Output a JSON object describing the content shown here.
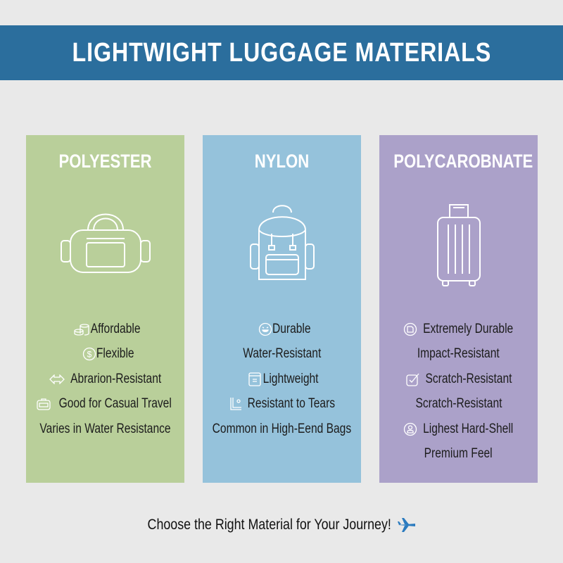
{
  "title": "LIGHTWIGHT LUGGAGE MATERIALS",
  "colors": {
    "header": "#2b6e9d",
    "background": "#e9e9e9",
    "polyester": "#b9cf9a",
    "nylon": "#95c2db",
    "polycarbonate": "#aba1c9",
    "plane": "#2b7bbf"
  },
  "cards": [
    {
      "title": "POLYESTER",
      "icon": "duffel-bag-icon",
      "features": [
        {
          "text": "Affordable",
          "icon": "coins-icon"
        },
        {
          "text": "Flexible",
          "icon": "dollar-circle-icon"
        },
        {
          "text": "Abrarion-Resistant",
          "icon": "double-arrow-icon"
        },
        {
          "text": "Good for Casual Travel",
          "icon": "ticket-icon"
        },
        {
          "text": "Varies in Water Resistance",
          "icon": ""
        }
      ]
    },
    {
      "title": "NYLON",
      "icon": "backpack-icon",
      "features": [
        {
          "text": "Durable",
          "icon": "smile-icon"
        },
        {
          "text": "Water-Resistant",
          "icon": ""
        },
        {
          "text": "Lightweight",
          "icon": "document-icon"
        },
        {
          "text": "Resistant to Tears",
          "icon": "corner-icon"
        },
        {
          "text": "Common in High-Eend Bags",
          "icon": ""
        }
      ]
    },
    {
      "title": "POLYCAROBNATE",
      "icon": "suitcase-icon",
      "features": [
        {
          "text": "Extremely Durable",
          "icon": "shield-circle-icon"
        },
        {
          "text": "Impact-Resistant",
          "icon": ""
        },
        {
          "text": "Scratch-Resistant",
          "icon": "edit-check-icon"
        },
        {
          "text": "Scratch-Resistant",
          "icon": ""
        },
        {
          "text": "Lighest Hard-Shell",
          "icon": "person-circle-icon"
        },
        {
          "text": "Premium Feel",
          "icon": ""
        }
      ]
    }
  ],
  "footer": {
    "text": "Choose the Right Material for Your Journey!",
    "icon": "airplane-icon"
  }
}
